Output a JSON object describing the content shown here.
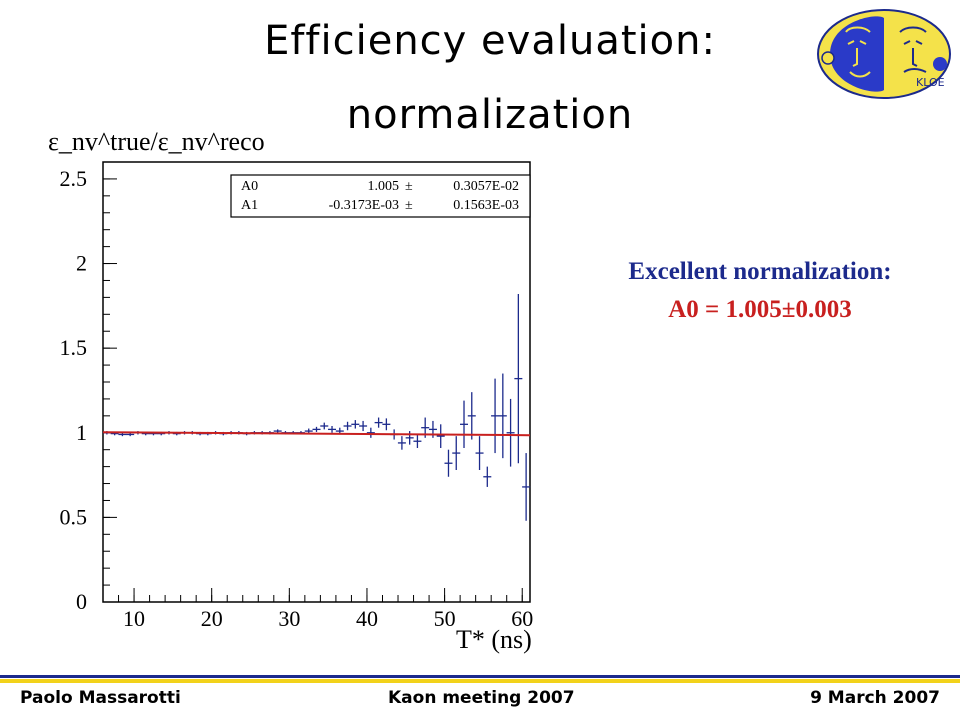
{
  "title": {
    "line1": "Efficiency evaluation:",
    "line2": "normalization"
  },
  "logo": {
    "icon": "kloe-logo",
    "text": "KLOE"
  },
  "callout": {
    "line1": "Excellent normalization:",
    "line2": "A0 = 1.005±0.003",
    "color1": "#1c2a8c",
    "color2": "#c8201f"
  },
  "footer": {
    "left": "Paolo Massarotti",
    "center": "Kaon  meeting  2007",
    "right": "9 March 2007",
    "line_color": "#1c2a8c",
    "band_color": "#f2d21a"
  },
  "chart_data": {
    "type": "scatter",
    "ylabel": "ε_nv^true/ε_nv^reco",
    "xlabel": "T* (ns)",
    "xlim": [
      6,
      61
    ],
    "ylim": [
      0,
      2.6
    ],
    "x_ticks": [
      10,
      20,
      30,
      40,
      50,
      60
    ],
    "y_ticks": [
      0,
      0.5,
      1,
      1.5,
      2,
      2.5
    ],
    "y_tick_labels": [
      "0",
      "0.5",
      "1",
      "1.5",
      "2",
      "2.5"
    ],
    "marker_color": "#1c2a8c",
    "fit_color": "#c8201f",
    "fit": {
      "A0": 1.005,
      "A1": -0.0003173
    },
    "stat_box": {
      "rows": [
        {
          "name": "A0",
          "value": "1.005",
          "pm": "±",
          "error": "0.3057E-02"
        },
        {
          "name": "A1",
          "value": "-0.3173E-03",
          "pm": "±",
          "error": "0.1563E-03"
        }
      ]
    },
    "series": [
      {
        "x": [
          6.5,
          7.5,
          8.5,
          9.5,
          10.5,
          11.5,
          12.5,
          13.5,
          14.5,
          15.5,
          16.5,
          17.5,
          18.5,
          19.5,
          20.5,
          21.5,
          22.5,
          23.5,
          24.5,
          25.5,
          26.5,
          27.5,
          28.5,
          29.5,
          30.5,
          31.5,
          32.5,
          33.5,
          34.5,
          35.5,
          36.5,
          37.5,
          38.5,
          39.5,
          40.5,
          41.5,
          42.5,
          43.5,
          44.5,
          45.5,
          46.5,
          47.5,
          48.5,
          49.5,
          50.5,
          51.5,
          52.5,
          53.5,
          54.5,
          55.5,
          56.5,
          57.5,
          58.5,
          59.5,
          60.5
        ],
        "y": [
          1.0,
          0.995,
          0.99,
          0.99,
          1.0,
          0.995,
          0.995,
          0.995,
          1.0,
          0.995,
          1.0,
          1.0,
          0.995,
          0.995,
          1.0,
          0.995,
          1.0,
          1.0,
          0.995,
          1.0,
          1.0,
          1.0,
          1.01,
          1.0,
          1.0,
          1.0,
          1.01,
          1.02,
          1.04,
          1.02,
          1.01,
          1.04,
          1.05,
          1.04,
          1.0,
          1.06,
          1.05,
          0.99,
          0.94,
          0.97,
          0.95,
          1.03,
          1.02,
          0.98,
          0.82,
          0.88,
          1.05,
          1.1,
          0.88,
          0.74,
          1.1,
          1.1,
          1.0,
          1.32,
          0.68
        ],
        "error": [
          0.01,
          0.01,
          0.01,
          0.01,
          0.01,
          0.01,
          0.01,
          0.01,
          0.01,
          0.01,
          0.01,
          0.01,
          0.01,
          0.01,
          0.01,
          0.01,
          0.01,
          0.01,
          0.01,
          0.01,
          0.01,
          0.01,
          0.01,
          0.01,
          0.01,
          0.01,
          0.015,
          0.015,
          0.02,
          0.02,
          0.02,
          0.025,
          0.025,
          0.03,
          0.03,
          0.03,
          0.035,
          0.03,
          0.04,
          0.04,
          0.04,
          0.06,
          0.05,
          0.07,
          0.08,
          0.1,
          0.14,
          0.14,
          0.1,
          0.06,
          0.22,
          0.25,
          0.2,
          0.5,
          0.2
        ]
      }
    ]
  }
}
